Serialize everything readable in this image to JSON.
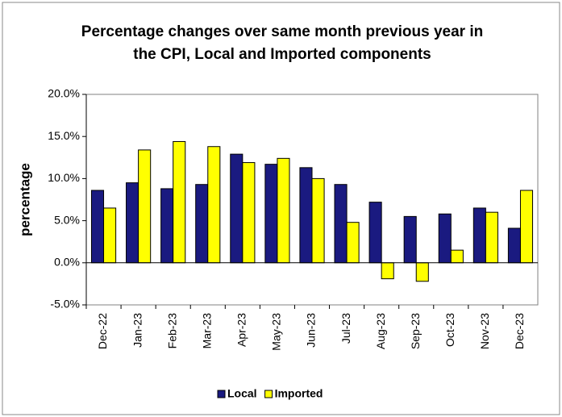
{
  "chart_data": {
    "type": "bar",
    "title": "Percentage changes over same month previous year in the CPI, Local and Imported components",
    "y_label": "percentage",
    "categories": [
      "Dec-22",
      "Jan-23",
      "Feb-23",
      "Mar-23",
      "Apr-23",
      "May-23",
      "Jun-23",
      "Jul-23",
      "Aug-23",
      "Sep-23",
      "Oct-23",
      "Nov-23",
      "Dec-23"
    ],
    "series": [
      {
        "name": "Local",
        "color": "#1a1a80",
        "values": [
          8.6,
          9.5,
          8.8,
          9.3,
          12.9,
          11.7,
          11.3,
          9.3,
          7.2,
          5.5,
          5.8,
          6.5,
          4.1
        ]
      },
      {
        "name": "Imported",
        "color": "#ffff00",
        "values": [
          6.5,
          13.4,
          14.4,
          13.8,
          11.9,
          12.4,
          10.0,
          4.8,
          -1.9,
          -2.2,
          1.5,
          6.0,
          8.6
        ]
      }
    ],
    "ylim": [
      -5,
      20
    ],
    "yticks": [
      {
        "value": -5,
        "label": "-5.0%"
      },
      {
        "value": 0,
        "label": "0.0%"
      },
      {
        "value": 5,
        "label": "5.0%"
      },
      {
        "value": 10,
        "label": "10.0%"
      },
      {
        "value": 15,
        "label": "15.0%"
      },
      {
        "value": 20,
        "label": "20.0%"
      }
    ],
    "grid": false,
    "legend": "bottom"
  }
}
